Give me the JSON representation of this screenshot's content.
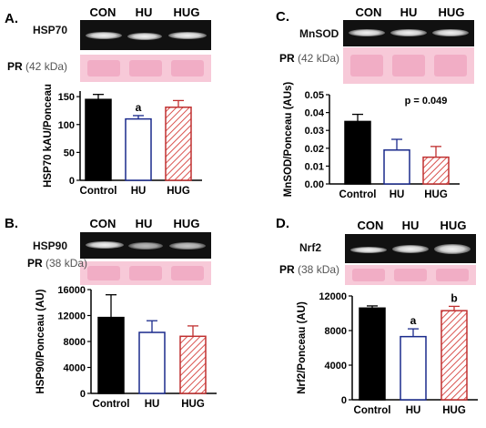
{
  "lanes": [
    "CON",
    "HU",
    "HUG"
  ],
  "colors": {
    "control": "#000000",
    "hu_border": "#1a2a8c",
    "hug_border": "#c03030",
    "hug_hatch": "#d9534f",
    "blot_bg": "#111111",
    "ponceau": "#f7c9d8"
  },
  "panels": [
    {
      "letter": "A.",
      "blot_label": "HSP70",
      "pr_protein": "PR",
      "pr_kda": "(42 kDa)",
      "chart_data": {
        "type": "bar",
        "categories": [
          "Control",
          "HU",
          "HUG"
        ],
        "values": [
          145,
          110,
          131
        ],
        "errors": [
          9,
          6,
          12
        ],
        "ylabel": "HSP70 kAU/Ponceau",
        "ylim": [
          0,
          160
        ],
        "yticks": [
          "0",
          "50",
          "100",
          "150"
        ],
        "annotations": [
          "",
          "a",
          ""
        ]
      }
    },
    {
      "letter": "B.",
      "blot_label": "HSP90",
      "pr_protein": "PR",
      "pr_kda": "(38 kDa)",
      "chart_data": {
        "type": "bar",
        "categories": [
          "Control",
          "HU",
          "HUG"
        ],
        "values": [
          11700,
          9400,
          8800
        ],
        "errors": [
          3500,
          1800,
          1600
        ],
        "ylabel": "HSP90/Ponceau (AU)",
        "ylim": [
          0,
          16000
        ],
        "yticks": [
          "0",
          "4000",
          "8000",
          "12000",
          "16000"
        ],
        "annotations": [
          "",
          "",
          ""
        ]
      }
    },
    {
      "letter": "C.",
      "blot_label": "MnSOD",
      "pr_protein": "PR",
      "pr_kda": "(42 kDa)",
      "chart_data": {
        "type": "bar",
        "categories": [
          "Control",
          "HU",
          "HUG"
        ],
        "values": [
          0.035,
          0.019,
          0.015
        ],
        "errors": [
          0.004,
          0.006,
          0.006
        ],
        "ylabel": "MnSOD/Ponceau (AUs)",
        "ylim": [
          0,
          0.05
        ],
        "yticks": [
          "0.00",
          "0.01",
          "0.02",
          "0.03",
          "0.04",
          "0.05"
        ],
        "annotations": [
          "",
          "",
          ""
        ],
        "p_value": "p = 0.049"
      }
    },
    {
      "letter": "D.",
      "blot_label": "Nrf2",
      "pr_protein": "PR",
      "pr_kda": "(38 kDa)",
      "chart_data": {
        "type": "bar",
        "categories": [
          "Control",
          "HU",
          "HUG"
        ],
        "values": [
          10600,
          7300,
          10300
        ],
        "errors": [
          250,
          900,
          500
        ],
        "ylabel": "Nrf2/Ponceau (AU)",
        "ylim": [
          0,
          12000
        ],
        "yticks": [
          "0",
          "4000",
          "8000",
          "12000"
        ],
        "annotations": [
          "",
          "a",
          "b"
        ]
      }
    }
  ]
}
